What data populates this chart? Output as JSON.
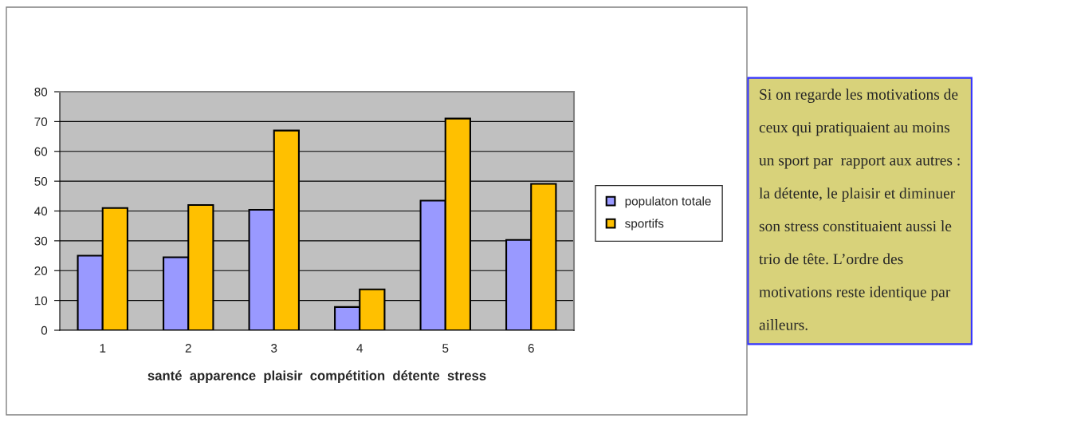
{
  "chart_data": {
    "type": "bar",
    "categories": [
      "1",
      "2",
      "3",
      "4",
      "5",
      "6"
    ],
    "xlabel": "santé  apparence  plaisir  compétition  détente  stress",
    "series": [
      {
        "name": "populaton totale",
        "color": "#9999ff",
        "values": [
          25,
          24.5,
          40.4,
          7.8,
          43.5,
          30.3
        ]
      },
      {
        "name": "sportifs",
        "color": "#ffc000",
        "values": [
          41,
          42,
          67,
          13.7,
          71,
          49.1
        ]
      }
    ],
    "ylim": [
      0,
      80
    ],
    "yticks": [
      0,
      10,
      20,
      30,
      40,
      50,
      60,
      70,
      80
    ],
    "grid": "y",
    "legend": "right",
    "annotations": [
      "Si on regarde les motivations de\nceux qui pratiquaient au moins\nun sport par  rapport aux autres :\nla détente, le plaisir et diminuer\nson stress constituaient aussi le\ntrio de tête. L’ordre des\nmotivations reste identique par\nailleurs."
    ]
  }
}
